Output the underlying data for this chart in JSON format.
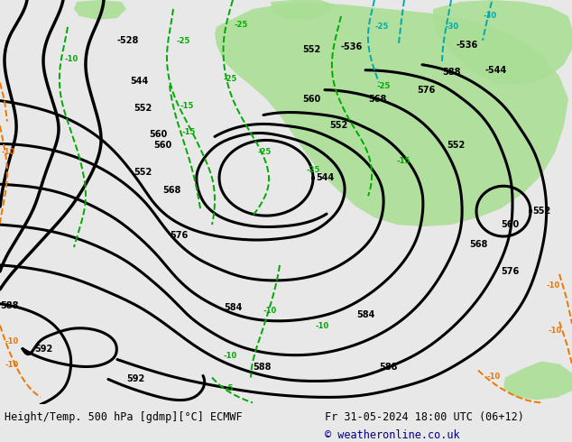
{
  "title_left": "Height/Temp. 500 hPa [gdmp][°C] ECMWF",
  "title_right": "Fr 31-05-2024 18:00 UTC (06+12)",
  "copyright": "© weatheronline.co.uk",
  "map_bg": "#c8c8c8",
  "green_fill": "#aade96",
  "bottom_bar_color": "#e8e8e8",
  "title_color": "#000000",
  "copyright_color": "#000080",
  "contour_color": "#000000",
  "temp_green": "#00aa00",
  "temp_cyan": "#00aaaa",
  "temp_orange": "#ee7700"
}
